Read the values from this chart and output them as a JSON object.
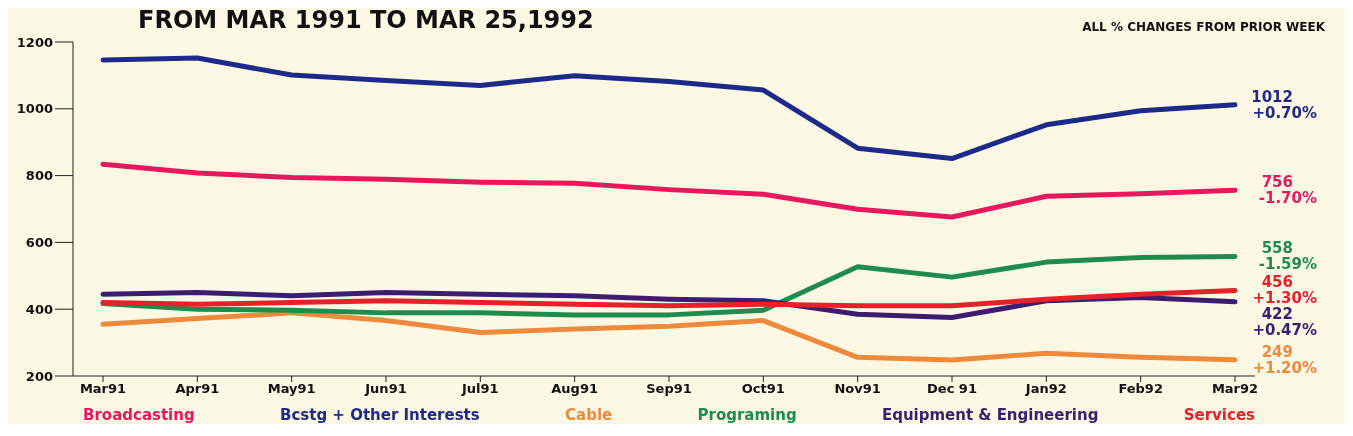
{
  "chart_data": {
    "type": "line",
    "title": "FROM MAR 1991 TO MAR 25,1992",
    "annotations": [
      "ALL % CHANGES FROM PRIOR WEEK",
      {
        "text": "+0.70%",
        "x": "Mar92",
        "y": 1012
      },
      {
        "text": "-1.70%",
        "x": "Mar92",
        "y": 756
      },
      {
        "text": "-1.59%",
        "x": "Mar92",
        "y": 558
      },
      {
        "text": "+1.30%",
        "x": "Mar92",
        "y": 456
      },
      {
        "text": "+0.47%",
        "x": "Mar92",
        "y": 422
      },
      {
        "text": "+1.20%",
        "x": "Mar92",
        "y": 249
      }
    ],
    "categories": [
      "Mar91",
      "Apr91",
      "May91",
      "Jun91",
      "Jul91",
      "Aug91",
      "Sep91",
      "Oct91",
      "Nov91",
      "Dec 91",
      "Jan92",
      "Feb92",
      "Mar92"
    ],
    "series": [
      {
        "name": "Broadcasting",
        "color": "#e8185e",
        "values": [
          834,
          808,
          794,
          789,
          780,
          777,
          758,
          744,
          699,
          676,
          738,
          746,
          756
        ],
        "value_labels": [
          null,
          null,
          null,
          null,
          null,
          null,
          null,
          null,
          null,
          null,
          null,
          null,
          "756"
        ]
      },
      {
        "name": "Bcstg + Other Interests",
        "color": "#1e2a8a",
        "values": [
          1146,
          1152,
          1101,
          1085,
          1070,
          1099,
          1082,
          1056,
          882,
          851,
          952,
          994,
          1012
        ],
        "value_labels": [
          null,
          null,
          null,
          null,
          null,
          null,
          null,
          null,
          null,
          null,
          null,
          null,
          "1012"
        ]
      },
      {
        "name": "Cable",
        "color": "#ee8a3c",
        "values": [
          355,
          372,
          389,
          366,
          330,
          341,
          349,
          366,
          256,
          248,
          268,
          256,
          249
        ],
        "value_labels": [
          null,
          null,
          null,
          null,
          null,
          null,
          null,
          null,
          null,
          null,
          null,
          null,
          "249"
        ]
      },
      {
        "name": "Programing",
        "color": "#1f8c4e",
        "values": [
          417,
          400,
          397,
          389,
          389,
          383,
          383,
          397,
          527,
          496,
          541,
          555,
          558
        ],
        "value_labels": [
          null,
          null,
          null,
          null,
          null,
          null,
          null,
          null,
          null,
          null,
          null,
          null,
          "558"
        ]
      },
      {
        "name": "Equipment & Engineering",
        "color": "#3a1f70",
        "values": [
          445,
          450,
          440,
          450,
          445,
          440,
          430,
          425,
          385,
          375,
          425,
          435,
          422
        ],
        "value_labels": [
          null,
          null,
          null,
          null,
          null,
          null,
          null,
          null,
          null,
          null,
          null,
          null,
          "422"
        ]
      },
      {
        "name": "Services",
        "color": "#e8202a",
        "values": [
          420,
          415,
          420,
          425,
          420,
          415,
          410,
          415,
          410,
          410,
          430,
          445,
          456
        ],
        "value_labels": [
          null,
          null,
          null,
          null,
          null,
          null,
          null,
          null,
          null,
          null,
          null,
          null,
          "456"
        ]
      }
    ],
    "ylim": [
      200,
      1200
    ],
    "yticks": [
      200,
      400,
      600,
      800,
      1000,
      1200
    ],
    "grid": false,
    "legend": "bottom",
    "marker": "none",
    "line_style": "solid"
  }
}
